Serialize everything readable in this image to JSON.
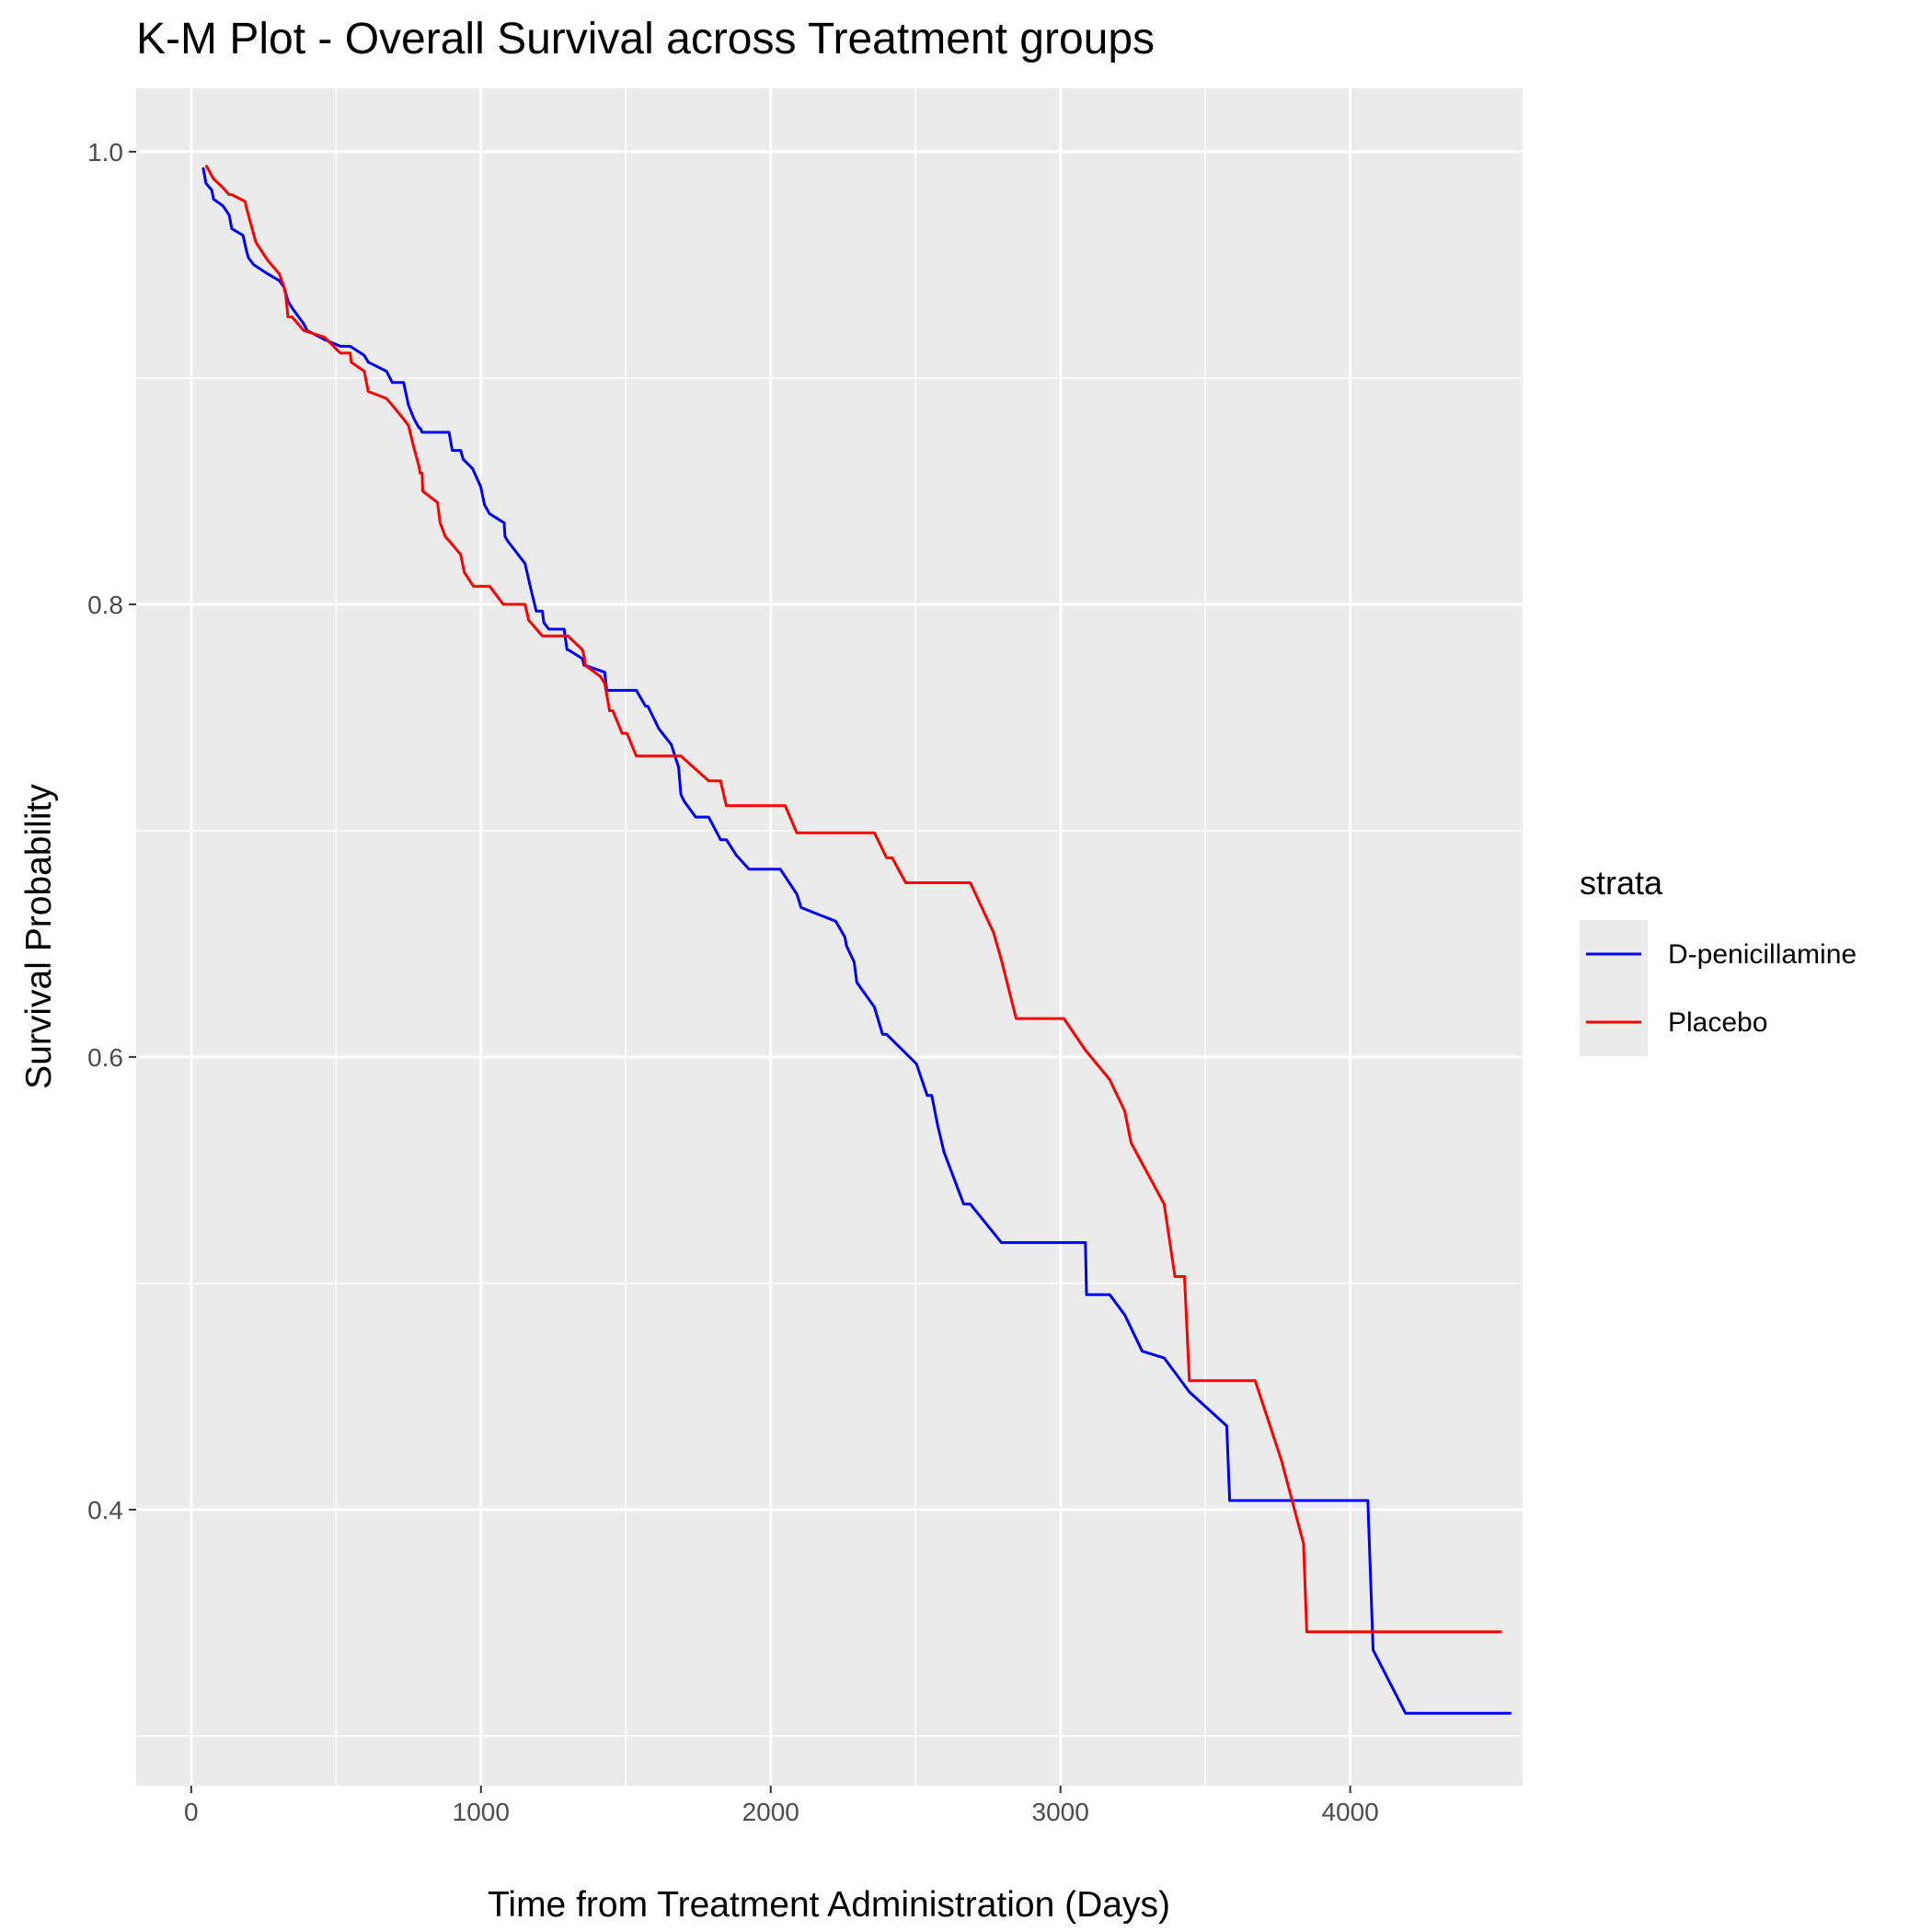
{
  "chart_data": {
    "type": "line",
    "title": "K-M Plot - Overall Survival across Treatment groups",
    "xlabel": "Time from Treatment Administration (Days)",
    "ylabel": "Survival Probability",
    "xlim": [
      -190,
      4595
    ],
    "ylim": [
      0.278,
      1.028
    ],
    "x_ticks": [
      0,
      1000,
      2000,
      3000,
      4000
    ],
    "x_tick_labels": [
      "0",
      "1000",
      "2000",
      "3000",
      "4000"
    ],
    "y_ticks": [
      0.4,
      0.6,
      0.8,
      1.0
    ],
    "y_tick_labels": [
      "0.4",
      "0.6",
      "0.8",
      "1.0"
    ],
    "y_minor_ticks": [
      0.3,
      0.5,
      0.7,
      0.9
    ],
    "x_minor_ticks": [
      500,
      1500,
      2500,
      3500
    ],
    "grid": true,
    "background": "#ebebeb",
    "legend": {
      "title": "strata",
      "position": "right",
      "entries": [
        "D-penicillamine",
        "Placebo"
      ]
    },
    "series": [
      {
        "name": "D-penicillamine",
        "color": "#0000ff",
        "x": [
          41,
          51,
          71,
          77,
          110,
          131,
          140,
          179,
          191,
          198,
          216,
          264,
          304,
          321,
          334,
          348,
          388,
          400,
          460,
          515,
          549,
          597,
          611,
          674,
          694,
          733,
          750,
          769,
          786,
          790,
          797,
          850,
          890,
          901,
          930,
          939,
          971,
          999,
          1012,
          1030,
          1080,
          1083,
          1092,
          1152,
          1170,
          1191,
          1212,
          1217,
          1234,
          1287,
          1297,
          1300,
          1350,
          1356,
          1360,
          1427,
          1434,
          1444,
          1487,
          1536,
          1568,
          1576,
          1614,
          1657,
          1682,
          1690,
          1701,
          1741,
          1786,
          1827,
          1847,
          1882,
          1925,
          1976,
          2033,
          2090,
          2105,
          2224,
          2256,
          2262,
          2288,
          2297,
          2358,
          2386,
          2400,
          2503,
          2540,
          2556,
          2576,
          2598,
          2666,
          2689,
          2796,
          2847,
          3037,
          3086,
          3090,
          3170,
          3222,
          3282,
          3358,
          3445,
          3574,
          3584,
          3839,
          3853,
          4061,
          4079,
          4191,
          4200,
          4300,
          4400,
          4556
        ],
        "y": [
          0.993,
          0.986,
          0.983,
          0.979,
          0.976,
          0.972,
          0.966,
          0.963,
          0.956,
          0.953,
          0.95,
          0.946,
          0.943,
          0.94,
          0.934,
          0.931,
          0.924,
          0.921,
          0.917,
          0.914,
          0.914,
          0.91,
          0.907,
          0.903,
          0.898,
          0.898,
          0.888,
          0.882,
          0.878,
          0.878,
          0.876,
          0.876,
          0.876,
          0.868,
          0.868,
          0.864,
          0.86,
          0.852,
          0.844,
          0.84,
          0.836,
          0.83,
          0.828,
          0.818,
          0.808,
          0.797,
          0.797,
          0.792,
          0.789,
          0.789,
          0.78,
          0.78,
          0.776,
          0.773,
          0.773,
          0.77,
          0.762,
          0.762,
          0.762,
          0.762,
          0.755,
          0.755,
          0.745,
          0.738,
          0.728,
          0.716,
          0.713,
          0.706,
          0.706,
          0.696,
          0.696,
          0.689,
          0.683,
          0.683,
          0.683,
          0.672,
          0.666,
          0.66,
          0.653,
          0.649,
          0.642,
          0.633,
          0.622,
          0.61,
          0.61,
          0.597,
          0.583,
          0.583,
          0.57,
          0.558,
          0.535,
          0.535,
          0.518,
          0.518,
          0.518,
          0.518,
          0.495,
          0.495,
          0.486,
          0.47,
          0.467,
          0.452,
          0.437,
          0.404,
          0.404,
          0.404,
          0.404,
          0.338,
          0.31,
          0.31,
          0.31,
          0.31,
          0.31
        ]
      },
      {
        "name": "Placebo",
        "color": "#ff0000",
        "x": [
          51,
          77,
          110,
          131,
          140,
          186,
          191,
          223,
          264,
          304,
          321,
          326,
          334,
          348,
          388,
          460,
          515,
          549,
          552,
          597,
          611,
          673,
          694,
          732,
          750,
          769,
          786,
          790,
          797,
          799,
          850,
          859,
          877,
          904,
          930,
          943,
          974,
          1000,
          1012,
          1030,
          1077,
          1080,
          1152,
          1165,
          1212,
          1217,
          1235,
          1297,
          1300,
          1350,
          1356,
          1360,
          1413,
          1427,
          1434,
          1444,
          1455,
          1487,
          1504,
          1536,
          1568,
          1614,
          1657,
          1690,
          1786,
          1827,
          1847,
          1925,
          1967,
          2050,
          2090,
          2144,
          2224,
          2256,
          2297,
          2358,
          2400,
          2419,
          2466,
          2540,
          2556,
          2598,
          2666,
          2689,
          2769,
          2796,
          2847,
          2875,
          3012,
          3086,
          3170,
          3222,
          3244,
          3358,
          3395,
          3428,
          3445,
          3584,
          3672,
          3762,
          3839,
          3850,
          3872,
          4000,
          4079,
          4500,
          4523
        ],
        "y": [
          0.994,
          0.988,
          0.984,
          0.981,
          0.981,
          0.978,
          0.975,
          0.96,
          0.952,
          0.946,
          0.94,
          0.937,
          0.927,
          0.927,
          0.921,
          0.918,
          0.911,
          0.911,
          0.907,
          0.903,
          0.894,
          0.891,
          0.888,
          0.882,
          0.879,
          0.869,
          0.861,
          0.858,
          0.858,
          0.85,
          0.845,
          0.836,
          0.83,
          0.826,
          0.822,
          0.814,
          0.808,
          0.808,
          0.808,
          0.808,
          0.8,
          0.8,
          0.8,
          0.793,
          0.786,
          0.786,
          0.786,
          0.786,
          0.786,
          0.78,
          0.777,
          0.773,
          0.768,
          0.765,
          0.76,
          0.753,
          0.753,
          0.743,
          0.743,
          0.733,
          0.733,
          0.733,
          0.733,
          0.733,
          0.722,
          0.722,
          0.711,
          0.711,
          0.711,
          0.711,
          0.699,
          0.699,
          0.699,
          0.699,
          0.699,
          0.699,
          0.688,
          0.688,
          0.677,
          0.677,
          0.677,
          0.677,
          0.677,
          0.677,
          0.655,
          0.643,
          0.617,
          0.617,
          0.617,
          0.603,
          0.59,
          0.576,
          0.562,
          0.535,
          0.503,
          0.503,
          0.457,
          0.457,
          0.457,
          0.422,
          0.385,
          0.346,
          0.346,
          0.346,
          0.346,
          0.346,
          0.346
        ]
      }
    ]
  }
}
